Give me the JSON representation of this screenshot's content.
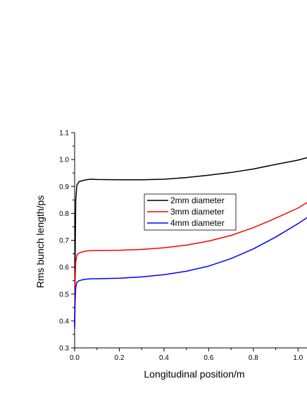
{
  "chart_data": {
    "type": "line",
    "xlabel": "Longitudinal position/m",
    "ylabel": "Rms bunch length/ps",
    "xlim": [
      0.0,
      1.04
    ],
    "ylim": [
      0.3,
      1.1
    ],
    "x_ticks": [
      0.0,
      0.2,
      0.4,
      0.6,
      0.8,
      1.0
    ],
    "x_tick_labels": [
      "0.0",
      "0.2",
      "0.4",
      "0.6",
      "0.8",
      "1.0"
    ],
    "y_ticks": [
      0.3,
      0.4,
      0.5,
      0.6,
      0.7,
      0.8,
      0.9,
      1.0,
      1.1
    ],
    "y_tick_labels": [
      "0.3",
      "0.4",
      "0.5",
      "0.6",
      "0.7",
      "0.8",
      "0.9",
      "1.0",
      "1.1"
    ],
    "legend_placement": "center",
    "grid": false,
    "series": [
      {
        "name": "2mm diameter",
        "color": "#000000",
        "x": [
          0.0,
          0.002,
          0.005,
          0.01,
          0.02,
          0.04,
          0.06,
          0.08,
          0.1,
          0.2,
          0.3,
          0.4,
          0.5,
          0.6,
          0.7,
          0.8,
          0.9,
          1.0,
          1.04
        ],
        "y": [
          0.38,
          0.62,
          0.85,
          0.905,
          0.918,
          0.923,
          0.926,
          0.927,
          0.926,
          0.925,
          0.925,
          0.927,
          0.933,
          0.942,
          0.952,
          0.965,
          0.982,
          0.998,
          1.007
        ]
      },
      {
        "name": "3mm diameter",
        "color": "#ff0000",
        "x": [
          0.0,
          0.002,
          0.005,
          0.01,
          0.02,
          0.04,
          0.06,
          0.08,
          0.1,
          0.2,
          0.3,
          0.4,
          0.5,
          0.6,
          0.7,
          0.8,
          0.9,
          1.0,
          1.04
        ],
        "y": [
          0.4,
          0.55,
          0.62,
          0.645,
          0.653,
          0.658,
          0.661,
          0.662,
          0.662,
          0.663,
          0.666,
          0.672,
          0.682,
          0.697,
          0.718,
          0.747,
          0.782,
          0.82,
          0.84
        ]
      },
      {
        "name": "4mm diameter",
        "color": "#0000ff",
        "x": [
          0.0,
          0.002,
          0.005,
          0.01,
          0.02,
          0.04,
          0.06,
          0.08,
          0.1,
          0.2,
          0.3,
          0.4,
          0.5,
          0.6,
          0.7,
          0.8,
          0.9,
          1.0,
          1.04
        ],
        "y": [
          0.37,
          0.47,
          0.525,
          0.543,
          0.55,
          0.554,
          0.556,
          0.557,
          0.557,
          0.559,
          0.564,
          0.572,
          0.585,
          0.604,
          0.632,
          0.668,
          0.712,
          0.762,
          0.784
        ]
      }
    ]
  }
}
